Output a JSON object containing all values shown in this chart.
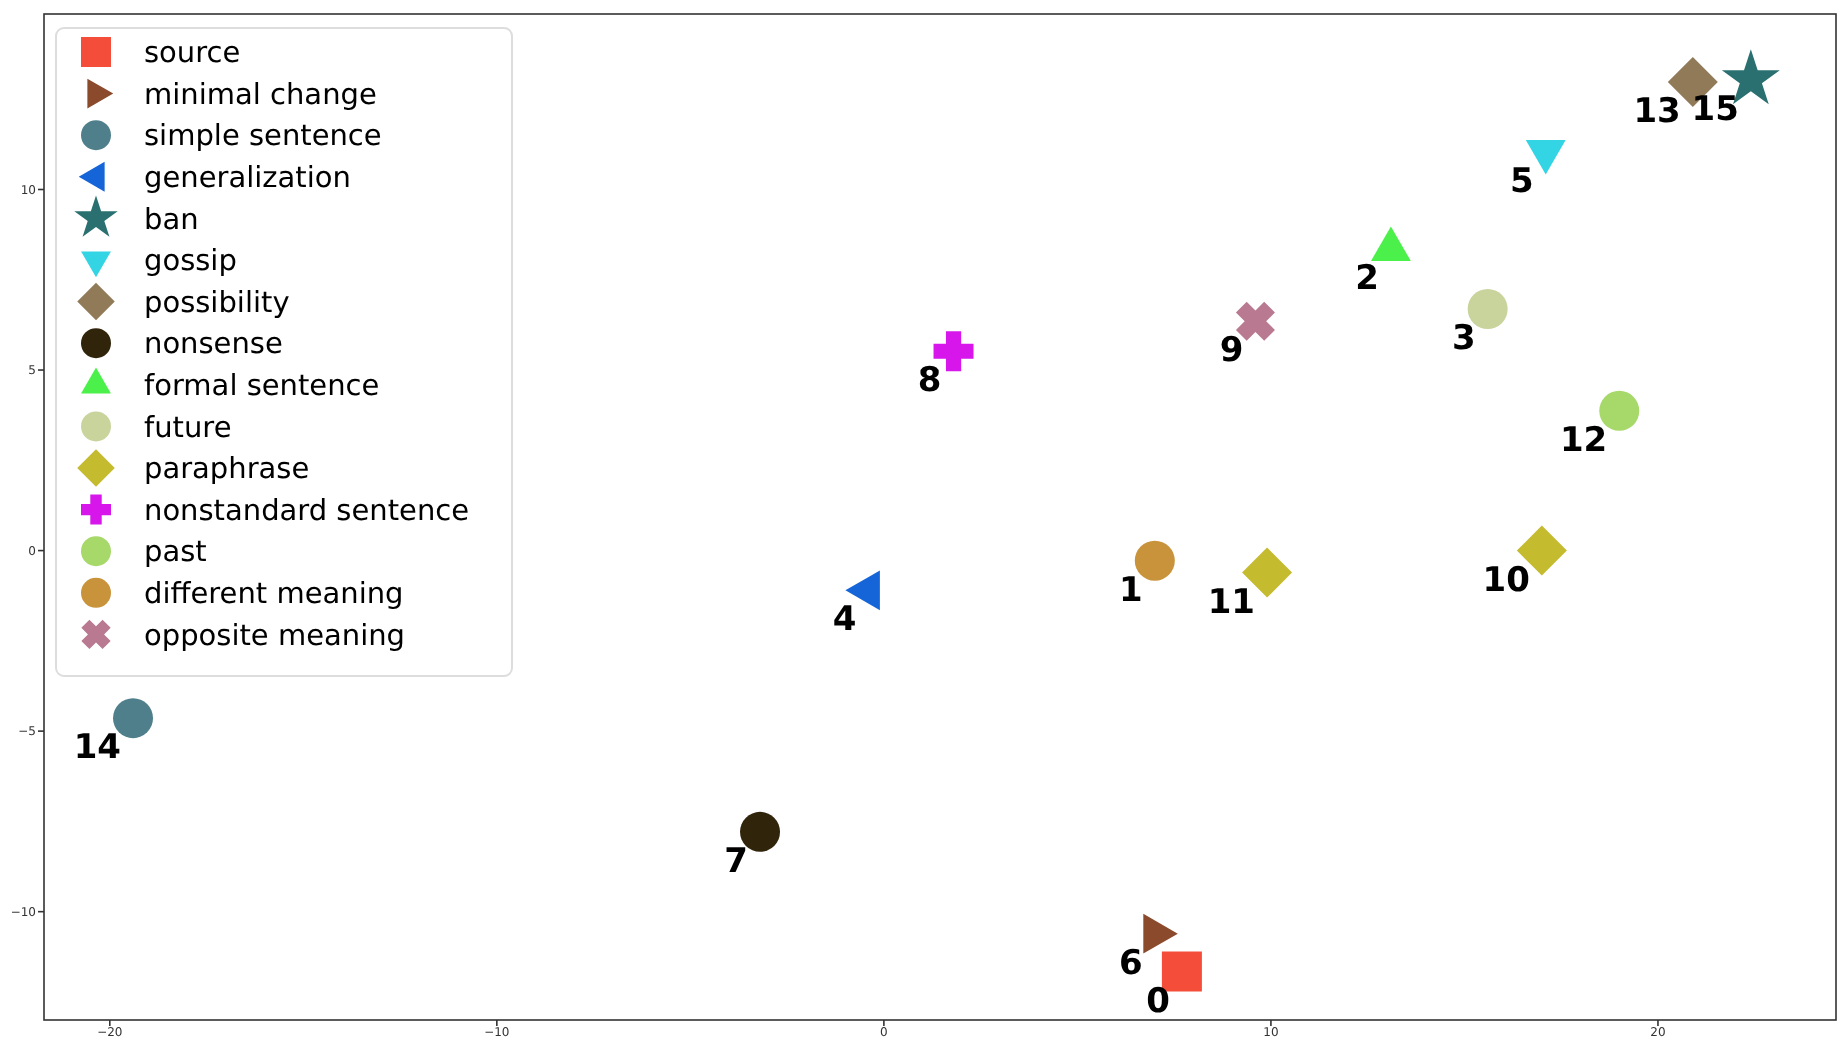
{
  "chart_data": {
    "type": "scatter",
    "xlim": [
      -21.7,
      24.6
    ],
    "ylim": [
      -13.0,
      14.86
    ],
    "xticks": [
      {
        "value": -20,
        "label": "−20"
      },
      {
        "value": -10,
        "label": "−10"
      },
      0,
      10,
      20
    ],
    "yticks": [
      {
        "value": -10,
        "label": "−10"
      },
      {
        "value": -5,
        "label": "−5"
      },
      0,
      5,
      10
    ],
    "grid": false,
    "legend": "top left",
    "series": [
      {
        "name": "source",
        "color": "#f44e3b",
        "marker": "square",
        "x": [
          7.7
        ],
        "values": [
          -11.66
        ]
      },
      {
        "name": "minimal change",
        "color": "#8b4a2b",
        "marker": "triangle-right",
        "x": [
          7.0
        ],
        "values": [
          -10.61
        ]
      },
      {
        "name": "simple sentence",
        "color": "#4e7f8b",
        "x": [
          -19.4
        ],
        "values": [
          -4.64
        ]
      },
      {
        "name": "generalization",
        "color": "#1565d8",
        "marker": "triangle-left",
        "x": [
          -0.4
        ],
        "values": [
          -1.1
        ]
      },
      {
        "name": "ban",
        "color": "#2a7070",
        "marker": "star",
        "x": [
          22.4
        ],
        "values": [
          13.04
        ]
      },
      {
        "name": "gossip",
        "color": "#33d4e3",
        "marker": "triangle-down",
        "x": [
          17.1
        ],
        "values": [
          11.05
        ]
      },
      {
        "name": "possibility",
        "color": "#917a58",
        "marker": "diamond",
        "x": [
          20.9
        ],
        "values": [
          12.98
        ]
      },
      {
        "name": "nonsense",
        "color": "#30240b",
        "marker": "circle",
        "x": [
          -3.2
        ],
        "values": [
          -7.79
        ]
      },
      {
        "name": "formal sentence",
        "color": "#4cf04a",
        "marker": "triangle",
        "x": [
          13.1
        ],
        "values": [
          8.34
        ]
      },
      {
        "name": "future",
        "color": "#c8d49c",
        "x": [
          15.6
        ],
        "values": [
          6.69
        ]
      },
      {
        "name": "paraphrase",
        "color": "#c4bb2f",
        "marker": "diamond",
        "x": [
          17.0,
          9.9
        ],
        "values": [
          0,
          -0.61
        ]
      },
      {
        "name": "nonstandard sentence",
        "color": "#d616ea",
        "marker": "plus",
        "x": [
          1.8
        ],
        "values": [
          5.52
        ]
      },
      {
        "name": "past",
        "color": "#a6d86a",
        "x": [
          19.0
        ],
        "values": [
          3.87
        ]
      },
      {
        "name": "different meaning",
        "color": "#c8933a",
        "x": [
          7.0
        ],
        "values": [
          -0.28
        ]
      },
      {
        "name": "opposite meaning",
        "color": "#b97a91",
        "marker": "cross",
        "x": [
          9.6
        ],
        "values": [
          6.35
        ]
      }
    ],
    "annotations": [
      {
        "text": "0",
        "x": 7.7,
        "y": -11.66
      },
      {
        "text": "1",
        "x": 7.0,
        "y": -0.28
      },
      {
        "text": "2",
        "x": 13.1,
        "y": 8.34
      },
      {
        "text": "3",
        "x": 15.6,
        "y": 6.69
      },
      {
        "text": "4",
        "x": -0.4,
        "y": -1.1
      },
      {
        "text": "5",
        "x": 17.1,
        "y": 11.05
      },
      {
        "text": "6",
        "x": 7.0,
        "y": -10.61
      },
      {
        "text": "7",
        "x": -3.2,
        "y": -7.79
      },
      {
        "text": "8",
        "x": 1.8,
        "y": 5.52
      },
      {
        "text": "9",
        "x": 9.6,
        "y": 6.35
      },
      {
        "text": "10",
        "x": 17.0,
        "y": 0
      },
      {
        "text": "11",
        "x": 9.9,
        "y": -0.61
      },
      {
        "text": "12",
        "x": 19.0,
        "y": 3.87
      },
      {
        "text": "13",
        "x": 20.9,
        "y": 12.98
      },
      {
        "text": "14",
        "x": -19.4,
        "y": -4.64
      },
      {
        "text": "15",
        "x": 22.4,
        "y": 13.04
      }
    ]
  }
}
